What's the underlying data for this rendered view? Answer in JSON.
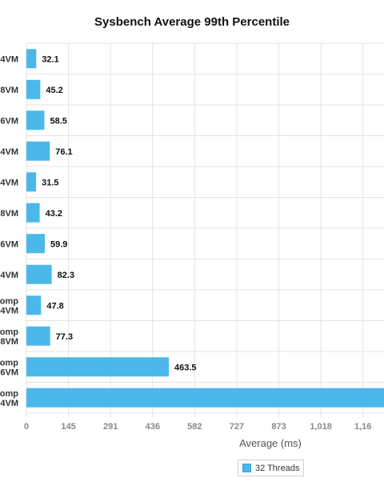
{
  "chart_data": {
    "type": "bar",
    "orientation": "horizontal",
    "title": "Sysbench Average 99th Percentile",
    "xlabel": "Average (ms)",
    "ylabel": "",
    "categories": [
      [
        "4VM"
      ],
      [
        "8VM"
      ],
      [
        "6VM"
      ],
      [
        "4VM"
      ],
      [
        "4VM"
      ],
      [
        "8VM"
      ],
      [
        "6VM"
      ],
      [
        "4VM"
      ],
      [
        "omp",
        "4VM"
      ],
      [
        "omp",
        "8VM"
      ],
      [
        "omp",
        "6VM"
      ],
      [
        "omp",
        "4VM"
      ]
    ],
    "series": [
      {
        "name": "32 Threads",
        "values": [
          32.1,
          45.2,
          58.5,
          76.1,
          31.5,
          43.2,
          59.9,
          82.3,
          47.8,
          77.3,
          463.5,
          null
        ]
      }
    ],
    "x_ticks": [
      "0",
      "145",
      "291",
      "436",
      "582",
      "727",
      "873",
      "1,018",
      "1,16"
    ],
    "xlim": [
      0,
      1164
    ],
    "grid": true,
    "legend_position": "bottom",
    "colors": {
      "bar": "#4cb8ea",
      "grid": "#e3e3e3"
    }
  }
}
